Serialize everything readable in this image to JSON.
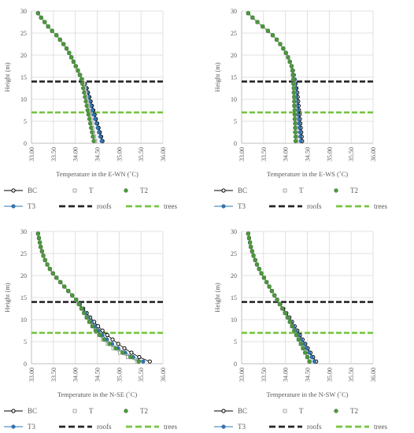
{
  "legend_labels": {
    "BC": "BC",
    "T": "T",
    "T2": "T2",
    "T3": "T3",
    "roofs": "roofs",
    "trees": "trees"
  },
  "colors": {
    "T2": "#4c9a3b",
    "T3": "#2e75b6",
    "roofs": "#262626",
    "trees": "#76c442",
    "BC": "#000000",
    "T": "#a6a6a6",
    "grid": "#d9d9d9",
    "axis": "#bfbfbf",
    "text": "#595959"
  },
  "chart_data": [
    {
      "type": "line",
      "xlabel": "Temperature in the E-WN (˚C)",
      "ylabel": "Height (m)",
      "xlim": [
        33.0,
        36.0
      ],
      "ylim": [
        0,
        30
      ],
      "xticks": [
        "33.00",
        "33.50",
        "34.00",
        "34.50",
        "35.00",
        "35.50",
        "36.00"
      ],
      "yticks": [
        "0",
        "5",
        "10",
        "15",
        "20",
        "25",
        "30"
      ],
      "hlines": {
        "roofs": 14,
        "trees": 7
      },
      "y": [
        29.5,
        28.5,
        27.5,
        26.5,
        25.5,
        24.5,
        23.5,
        22.5,
        21.5,
        20.5,
        19.5,
        18.5,
        17.5,
        16.5,
        15.5,
        14.5,
        13.5,
        12.5,
        11.5,
        10.5,
        9.5,
        8.5,
        7.5,
        6.5,
        5.5,
        4.5,
        3.5,
        2.5,
        1.5,
        0.5
      ],
      "series": [
        {
          "name": "BC",
          "x": [
            33.15,
            33.22,
            33.3,
            33.38,
            33.47,
            33.57,
            33.65,
            33.73,
            33.8,
            33.86,
            33.91,
            33.96,
            34.01,
            34.06,
            34.11,
            34.16,
            34.22,
            34.26,
            34.29,
            34.32,
            34.35,
            34.38,
            34.41,
            34.44,
            34.47,
            34.5,
            34.53,
            34.56,
            34.59,
            34.62
          ]
        },
        {
          "name": "T",
          "x": [
            33.15,
            33.22,
            33.3,
            33.38,
            33.47,
            33.57,
            33.65,
            33.73,
            33.8,
            33.86,
            33.91,
            33.96,
            34.01,
            34.06,
            34.11,
            34.16,
            34.19,
            34.21,
            34.23,
            34.25,
            34.27,
            34.29,
            34.31,
            34.33,
            34.35,
            34.37,
            34.39,
            34.41,
            34.43,
            34.45
          ]
        },
        {
          "name": "T2",
          "x": [
            33.15,
            33.22,
            33.3,
            33.38,
            33.47,
            33.57,
            33.65,
            33.73,
            33.8,
            33.86,
            33.91,
            33.96,
            34.01,
            34.06,
            34.1,
            34.14,
            34.16,
            34.18,
            34.2,
            34.22,
            34.24,
            34.26,
            34.28,
            34.3,
            34.32,
            34.34,
            34.36,
            34.38,
            34.4,
            34.42
          ]
        },
        {
          "name": "T3",
          "x": [
            33.15,
            33.22,
            33.3,
            33.38,
            33.47,
            33.57,
            33.65,
            33.73,
            33.8,
            33.86,
            33.91,
            33.96,
            34.01,
            34.06,
            34.11,
            34.16,
            34.2,
            34.24,
            34.27,
            34.3,
            34.33,
            34.36,
            34.39,
            34.42,
            34.45,
            34.48,
            34.51,
            34.54,
            34.57,
            34.6
          ]
        }
      ]
    },
    {
      "type": "line",
      "xlabel": "Temperature in the E-WS (˚C)",
      "ylabel": "Height (m)",
      "xlim": [
        33.0,
        36.0
      ],
      "ylim": [
        0,
        30
      ],
      "xticks": [
        "33.00",
        "33.50",
        "34.00",
        "34.50",
        "35.00",
        "35.50",
        "36.00"
      ],
      "yticks": [
        "0",
        "5",
        "10",
        "15",
        "20",
        "25",
        "30"
      ],
      "hlines": {
        "roofs": 14,
        "trees": 7
      },
      "y": [
        29.5,
        28.5,
        27.5,
        26.5,
        25.5,
        24.5,
        23.5,
        22.5,
        21.5,
        20.5,
        19.5,
        18.5,
        17.5,
        16.5,
        15.5,
        14.5,
        13.5,
        12.5,
        11.5,
        10.5,
        9.5,
        8.5,
        7.5,
        6.5,
        5.5,
        4.5,
        3.5,
        2.5,
        1.5,
        0.5
      ],
      "series": [
        {
          "name": "BC",
          "x": [
            33.15,
            33.25,
            33.36,
            33.48,
            33.6,
            33.71,
            33.8,
            33.88,
            33.95,
            34.01,
            34.06,
            34.1,
            34.14,
            34.17,
            34.19,
            34.21,
            34.23,
            34.25,
            34.27,
            34.28,
            34.29,
            34.3,
            34.31,
            34.32,
            34.33,
            34.34,
            34.35,
            34.36,
            34.37,
            34.38
          ]
        },
        {
          "name": "T",
          "x": [
            33.15,
            33.25,
            33.36,
            33.48,
            33.6,
            33.71,
            33.8,
            33.88,
            33.95,
            34.01,
            34.06,
            34.1,
            34.14,
            34.16,
            34.17,
            34.18,
            34.19,
            34.19,
            34.2,
            34.2,
            34.21,
            34.21,
            34.22,
            34.22,
            34.23,
            34.23,
            34.24,
            34.24,
            34.25,
            34.25
          ]
        },
        {
          "name": "T2",
          "x": [
            33.15,
            33.25,
            33.36,
            33.48,
            33.6,
            33.71,
            33.8,
            33.88,
            33.95,
            34.01,
            34.06,
            34.1,
            34.14,
            34.16,
            34.17,
            34.18,
            34.18,
            34.19,
            34.19,
            34.2,
            34.2,
            34.2,
            34.21,
            34.21,
            34.21,
            34.22,
            34.22,
            34.22,
            34.23,
            34.23
          ]
        },
        {
          "name": "T3",
          "x": [
            33.15,
            33.25,
            33.36,
            33.48,
            33.6,
            33.71,
            33.8,
            33.88,
            33.95,
            34.01,
            34.06,
            34.1,
            34.14,
            34.17,
            34.19,
            34.21,
            34.22,
            34.23,
            34.24,
            34.25,
            34.26,
            34.27,
            34.28,
            34.29,
            34.3,
            34.31,
            34.32,
            34.33,
            34.34,
            34.35
          ]
        }
      ]
    },
    {
      "type": "line",
      "xlabel": "Temperature in the N-SE (˚C)",
      "ylabel": "Height (m)",
      "xlim": [
        33.0,
        36.0
      ],
      "ylim": [
        0,
        30
      ],
      "xticks": [
        "33.00",
        "33.50",
        "34.00",
        "34.50",
        "35.00",
        "35.50",
        "36.00"
      ],
      "yticks": [
        "0",
        "5",
        "10",
        "15",
        "20",
        "25",
        "30"
      ],
      "hlines": {
        "roofs": 14,
        "trees": 7
      },
      "y": [
        29.5,
        28.5,
        27.5,
        26.5,
        25.5,
        24.5,
        23.5,
        22.5,
        21.5,
        20.5,
        19.5,
        18.5,
        17.5,
        16.5,
        15.5,
        14.5,
        13.5,
        12.5,
        11.5,
        10.5,
        9.5,
        8.5,
        7.5,
        6.5,
        5.5,
        4.5,
        3.5,
        2.5,
        1.5,
        0.5
      ],
      "series": [
        {
          "name": "BC",
          "x": [
            33.15,
            33.17,
            33.19,
            33.21,
            33.24,
            33.27,
            33.31,
            33.36,
            33.42,
            33.49,
            33.57,
            33.66,
            33.75,
            33.84,
            33.93,
            34.02,
            34.1,
            34.18,
            34.26,
            34.34,
            34.43,
            34.52,
            34.62,
            34.73,
            34.85,
            34.98,
            35.12,
            35.28,
            35.46,
            35.7
          ]
        },
        {
          "name": "T",
          "x": [
            33.15,
            33.17,
            33.19,
            33.21,
            33.24,
            33.27,
            33.31,
            33.36,
            33.42,
            33.49,
            33.57,
            33.66,
            33.75,
            33.84,
            33.93,
            34.02,
            34.08,
            34.14,
            34.2,
            34.26,
            34.32,
            34.39,
            34.46,
            34.54,
            34.63,
            34.74,
            34.87,
            35.02,
            35.2,
            35.42
          ]
        },
        {
          "name": "T2",
          "x": [
            33.15,
            33.17,
            33.19,
            33.21,
            33.24,
            33.27,
            33.31,
            33.36,
            33.42,
            33.49,
            33.57,
            33.66,
            33.75,
            33.84,
            33.93,
            34.02,
            34.08,
            34.14,
            34.2,
            34.26,
            34.32,
            34.39,
            34.47,
            34.56,
            34.66,
            34.78,
            34.92,
            35.08,
            35.26,
            35.45
          ]
        },
        {
          "name": "T3",
          "x": [
            33.15,
            33.17,
            33.19,
            33.21,
            33.24,
            33.27,
            33.31,
            33.36,
            33.42,
            33.49,
            33.57,
            33.66,
            33.75,
            33.84,
            33.93,
            34.02,
            34.09,
            34.16,
            34.23,
            34.3,
            34.37,
            34.45,
            34.53,
            34.62,
            34.72,
            34.84,
            34.98,
            35.14,
            35.32,
            35.55
          ]
        }
      ]
    },
    {
      "type": "line",
      "xlabel": "Temperature in the N-SW (˚C)",
      "ylabel": "Height (m)",
      "xlim": [
        33.0,
        36.0
      ],
      "ylim": [
        0,
        30
      ],
      "xticks": [
        "33.00",
        "33.50",
        "34.00",
        "34.50",
        "35.00",
        "35.50",
        "36.00"
      ],
      "yticks": [
        "0",
        "5",
        "10",
        "15",
        "20",
        "25",
        "30"
      ],
      "hlines": {
        "roofs": 14,
        "trees": 7
      },
      "y": [
        29.5,
        28.5,
        27.5,
        26.5,
        25.5,
        24.5,
        23.5,
        22.5,
        21.5,
        20.5,
        19.5,
        18.5,
        17.5,
        16.5,
        15.5,
        14.5,
        13.5,
        12.5,
        11.5,
        10.5,
        9.5,
        8.5,
        7.5,
        6.5,
        5.5,
        4.5,
        3.5,
        2.5,
        1.5,
        0.5
      ],
      "series": [
        {
          "name": "BC",
          "x": [
            33.15,
            33.17,
            33.19,
            33.21,
            33.24,
            33.27,
            33.31,
            33.35,
            33.4,
            33.45,
            33.51,
            33.57,
            33.63,
            33.69,
            33.75,
            33.81,
            33.88,
            33.95,
            34.02,
            34.09,
            34.15,
            34.21,
            34.27,
            34.33,
            34.39,
            34.45,
            34.51,
            34.57,
            34.63,
            34.7
          ]
        },
        {
          "name": "T",
          "x": [
            33.15,
            33.17,
            33.19,
            33.21,
            33.24,
            33.27,
            33.31,
            33.35,
            33.4,
            33.45,
            33.51,
            33.57,
            33.63,
            33.69,
            33.75,
            33.81,
            33.87,
            33.93,
            33.99,
            34.05,
            34.1,
            34.15,
            34.2,
            34.25,
            34.3,
            34.35,
            34.4,
            34.45,
            34.5,
            34.55
          ]
        },
        {
          "name": "T2",
          "x": [
            33.15,
            33.17,
            33.19,
            33.21,
            33.24,
            33.27,
            33.31,
            33.35,
            33.4,
            33.45,
            33.51,
            33.57,
            33.63,
            33.69,
            33.75,
            33.81,
            33.87,
            33.93,
            33.99,
            34.05,
            34.1,
            34.15,
            34.2,
            34.25,
            34.3,
            34.35,
            34.4,
            34.45,
            34.5,
            34.55
          ]
        },
        {
          "name": "T3",
          "x": [
            33.15,
            33.17,
            33.19,
            33.21,
            33.24,
            33.27,
            33.31,
            33.35,
            33.4,
            33.45,
            33.51,
            33.57,
            33.63,
            33.69,
            33.75,
            33.81,
            33.87,
            33.93,
            33.99,
            34.06,
            34.12,
            34.18,
            34.24,
            34.3,
            34.36,
            34.42,
            34.48,
            34.54,
            34.6,
            34.66
          ]
        }
      ]
    }
  ]
}
